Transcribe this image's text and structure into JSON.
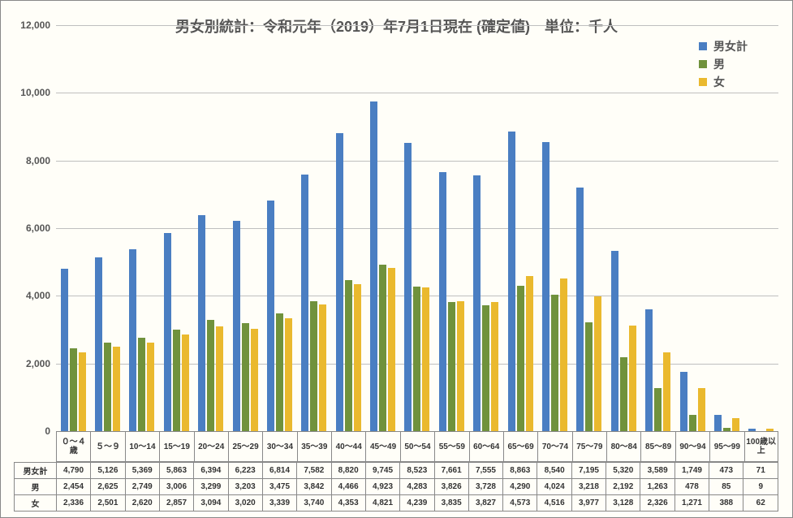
{
  "chart": {
    "type": "bar",
    "title": "男女別統計：令和元年（2019）年7月1日現在 (確定値)　単位：千人",
    "title_fontsize": 18,
    "title_color": "#555555",
    "background_color": "#fffef8",
    "grid_color": "#bfbfbf",
    "axis_font_color": "#555555",
    "ylim": [
      0,
      12000
    ],
    "ytick_step": 2000,
    "yticks": [
      "0",
      "2,000",
      "4,000",
      "6,000",
      "8,000",
      "10,000",
      "12,000"
    ],
    "categories": [
      "０～４歳",
      "５～９",
      "10～14",
      "15～19",
      "20～24",
      "25～29",
      "30～34",
      "35～39",
      "40～44",
      "45～49",
      "50～54",
      "55～59",
      "60～64",
      "65～69",
      "70～74",
      "75～79",
      "80～84",
      "85～89",
      "90～94",
      "95～99",
      "100歳以上"
    ],
    "series": [
      {
        "name": "男女計",
        "color": "#4a7ec2",
        "values": [
          4790,
          5126,
          5369,
          5863,
          6394,
          6223,
          6814,
          7582,
          8820,
          9745,
          8523,
          7661,
          7555,
          8863,
          8540,
          7195,
          5320,
          3589,
          1749,
          473,
          71
        ]
      },
      {
        "name": "男",
        "color": "#70923c",
        "values": [
          2454,
          2625,
          2749,
          3006,
          3299,
          3203,
          3475,
          3842,
          4466,
          4923,
          4283,
          3826,
          3728,
          4290,
          4024,
          3218,
          2192,
          1263,
          478,
          85,
          9
        ]
      },
      {
        "name": "女",
        "color": "#eab92e",
        "values": [
          2336,
          2501,
          2620,
          2857,
          3094,
          3020,
          3339,
          3740,
          4353,
          4821,
          4239,
          3835,
          3827,
          4573,
          4516,
          3977,
          3128,
          2326,
          1271,
          388,
          62
        ]
      }
    ],
    "display_values": [
      [
        "4,790",
        "5,126",
        "5,369",
        "5,863",
        "6,394",
        "6,223",
        "6,814",
        "7,582",
        "8,820",
        "9,745",
        "8,523",
        "7,661",
        "7,555",
        "8,863",
        "8,540",
        "7,195",
        "5,320",
        "3,589",
        "1,749",
        "473",
        "71"
      ],
      [
        "2,454",
        "2,625",
        "2,749",
        "3,006",
        "3,299",
        "3,203",
        "3,475",
        "3,842",
        "4,466",
        "4,923",
        "4,283",
        "3,826",
        "3,728",
        "4,290",
        "4,024",
        "3,218",
        "2,192",
        "1,263",
        "478",
        "85",
        "9"
      ],
      [
        "2,336",
        "2,501",
        "2,620",
        "2,857",
        "3,094",
        "3,020",
        "3,339",
        "3,740",
        "4,353",
        "4,821",
        "4,239",
        "3,835",
        "3,827",
        "4,573",
        "4,516",
        "3,977",
        "3,128",
        "2,326",
        "1,271",
        "388",
        "62"
      ]
    ],
    "legend_labels": [
      "男女計",
      "男",
      "女"
    ],
    "legend_fontsize": 14
  }
}
